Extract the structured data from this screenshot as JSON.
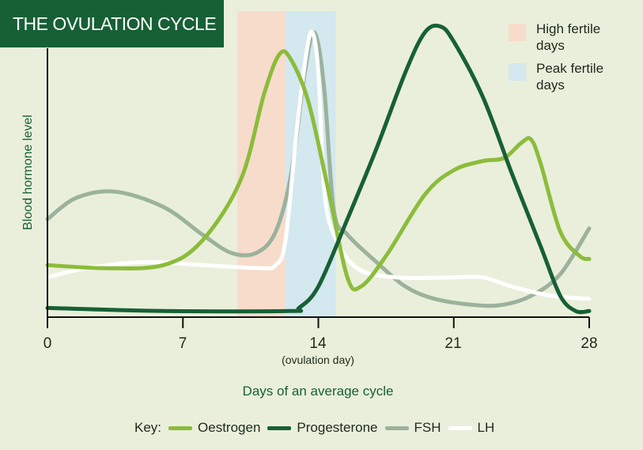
{
  "chart_data": {
    "type": "line",
    "title": "THE OVULATION CYCLE",
    "xlabel": "Days of an average cycle",
    "ylabel": "Blood hormone level",
    "xlim": [
      0,
      28
    ],
    "ylim": [
      0,
      1
    ],
    "x_ticks": [
      "0",
      "7",
      "14",
      "21",
      "28"
    ],
    "x_tick_note": "(ovulation day)",
    "bands": [
      {
        "label": "High fertile days",
        "from": 9.8,
        "to": 12.3,
        "color": "#f7dccb"
      },
      {
        "label": "Peak fertile days",
        "from": 12.3,
        "to": 14.9,
        "color": "#d3e8ef"
      }
    ],
    "key_label": "Key:",
    "series": [
      {
        "name": "Oestrogen",
        "color": "#8cbc3b",
        "points": [
          [
            0,
            0.17
          ],
          [
            3,
            0.16
          ],
          [
            6,
            0.17
          ],
          [
            8,
            0.25
          ],
          [
            10,
            0.45
          ],
          [
            11.2,
            0.73
          ],
          [
            12,
            0.86
          ],
          [
            12.6,
            0.84
          ],
          [
            13.5,
            0.7
          ],
          [
            14.5,
            0.42
          ],
          [
            15.5,
            0.13
          ],
          [
            16.2,
            0.1
          ],
          [
            17.5,
            0.2
          ],
          [
            19.5,
            0.4
          ],
          [
            21,
            0.48
          ],
          [
            22.5,
            0.51
          ],
          [
            23.6,
            0.52
          ],
          [
            24.5,
            0.57
          ],
          [
            25,
            0.58
          ],
          [
            25.5,
            0.5
          ],
          [
            26.5,
            0.28
          ],
          [
            27.5,
            0.2
          ],
          [
            28,
            0.19
          ]
        ]
      },
      {
        "name": "Progesterone",
        "color": "#176036",
        "points": [
          [
            0,
            0.03
          ],
          [
            6,
            0.02
          ],
          [
            12.5,
            0.02
          ],
          [
            13,
            0.03
          ],
          [
            14,
            0.1
          ],
          [
            15.5,
            0.32
          ],
          [
            17,
            0.55
          ],
          [
            18.5,
            0.8
          ],
          [
            19.5,
            0.93
          ],
          [
            20.3,
            0.95
          ],
          [
            21,
            0.9
          ],
          [
            22.5,
            0.72
          ],
          [
            24,
            0.47
          ],
          [
            25.5,
            0.23
          ],
          [
            26.5,
            0.07
          ],
          [
            27.3,
            0.02
          ],
          [
            28,
            0.02
          ]
        ]
      },
      {
        "name": "FSH",
        "color": "#9bb29c",
        "points": [
          [
            0,
            0.32
          ],
          [
            1.5,
            0.39
          ],
          [
            3.5,
            0.41
          ],
          [
            6,
            0.36
          ],
          [
            8,
            0.27
          ],
          [
            9.5,
            0.21
          ],
          [
            10.8,
            0.21
          ],
          [
            11.8,
            0.28
          ],
          [
            12.6,
            0.47
          ],
          [
            13.3,
            0.8
          ],
          [
            13.8,
            0.93
          ],
          [
            14.3,
            0.75
          ],
          [
            14.8,
            0.35
          ],
          [
            15.5,
            0.27
          ],
          [
            17,
            0.18
          ],
          [
            18.5,
            0.1
          ],
          [
            20,
            0.06
          ],
          [
            22,
            0.04
          ],
          [
            23.5,
            0.04
          ],
          [
            25,
            0.07
          ],
          [
            26.5,
            0.14
          ],
          [
            28,
            0.29
          ]
        ]
      },
      {
        "name": "LH",
        "color": "#ffffff",
        "points": [
          [
            0,
            0.13
          ],
          [
            2,
            0.16
          ],
          [
            5,
            0.18
          ],
          [
            8,
            0.17
          ],
          [
            11,
            0.16
          ],
          [
            11.8,
            0.17
          ],
          [
            12.3,
            0.25
          ],
          [
            12.9,
            0.62
          ],
          [
            13.4,
            0.87
          ],
          [
            13.7,
            0.93
          ],
          [
            14,
            0.8
          ],
          [
            14.3,
            0.42
          ],
          [
            14.8,
            0.27
          ],
          [
            16,
            0.16
          ],
          [
            18,
            0.13
          ],
          [
            21,
            0.13
          ],
          [
            22.5,
            0.13
          ],
          [
            24,
            0.1
          ],
          [
            26,
            0.07
          ],
          [
            28,
            0.06
          ]
        ]
      }
    ]
  }
}
